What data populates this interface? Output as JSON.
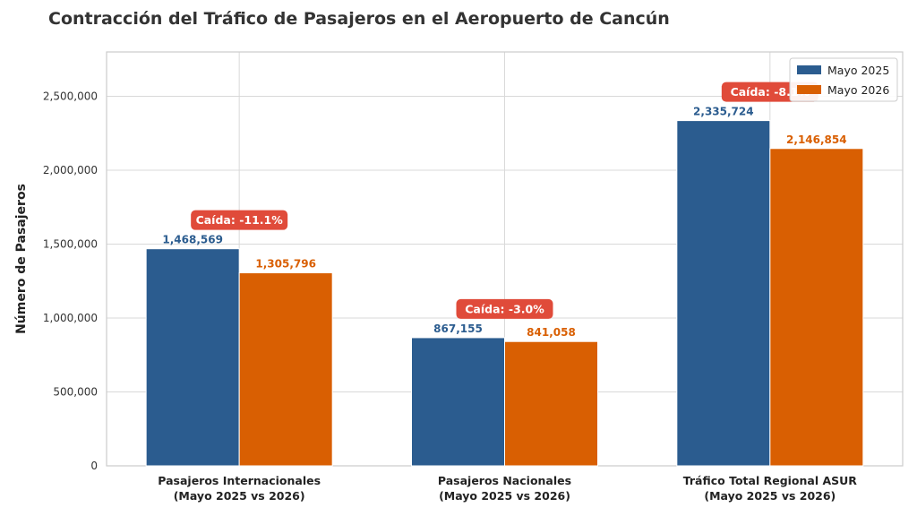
{
  "chart_data": {
    "type": "bar",
    "title": "Contracción del Tráfico de Pasajeros en el Aeropuerto de Cancún",
    "xlabel": "",
    "ylabel": "Número de Pasajeros",
    "ylim": [
      0,
      2800000
    ],
    "yticks": [
      0,
      500000,
      1000000,
      1500000,
      2000000,
      2500000
    ],
    "ytick_labels": [
      "0",
      "500,000",
      "1,000,000",
      "1,500,000",
      "2,000,000",
      "2,500,000"
    ],
    "categories": [
      [
        "Pasajeros Internacionales",
        "(Mayo 2025 vs 2026)"
      ],
      [
        "Pasajeros Nacionales",
        "(Mayo 2025 vs 2026)"
      ],
      [
        "Tráfico Total Regional ASUR",
        "(Mayo 2025 vs 2026)"
      ]
    ],
    "series": [
      {
        "name": "Mayo 2025",
        "color": "#2b5c8f",
        "values": [
          1468569,
          867155,
          2335724
        ],
        "labels": [
          "1,468,569",
          "867,155",
          "2,335,724"
        ]
      },
      {
        "name": "Mayo 2026",
        "color": "#d95f02",
        "values": [
          1305796,
          841058,
          2146854
        ],
        "labels": [
          "1,305,796",
          "841,058",
          "2,146,854"
        ]
      }
    ],
    "annotations": [
      "Caída: -11.1%",
      "Caída: -3.0%",
      "Caída: -8.1%"
    ],
    "annotation_color": "#e04b3a",
    "grid": true,
    "legend_position": "top-right"
  }
}
